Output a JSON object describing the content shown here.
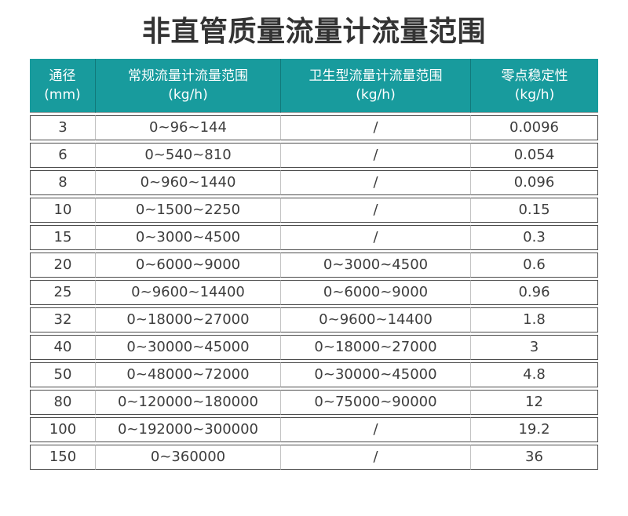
{
  "title": "非直管质量流量计流量范围",
  "theme": {
    "header_background": "#189B9D",
    "header_text_color": "#FFFFFF",
    "row_border_color": "#4C4C4C",
    "cell_divider_color": "#C2C2C2",
    "body_text_color": "#3D3D3D",
    "title_color": "#333333",
    "page_background": "#FFFFFF"
  },
  "table": {
    "columns": [
      {
        "label": "通径",
        "unit": "(mm)"
      },
      {
        "label": "常规流量计流量范围",
        "unit": "(kg/h)"
      },
      {
        "label": "卫生型流量计流量范围",
        "unit": "(kg/h)"
      },
      {
        "label": "零点稳定性",
        "unit": "(kg/h)"
      }
    ],
    "rows": [
      [
        "3",
        "0~96~144",
        "/",
        "0.0096"
      ],
      [
        "6",
        "0~540~810",
        "/",
        "0.054"
      ],
      [
        "8",
        "0~960~1440",
        "/",
        "0.096"
      ],
      [
        "10",
        "0~1500~2250",
        "/",
        "0.15"
      ],
      [
        "15",
        "0~3000~4500",
        "/",
        "0.3"
      ],
      [
        "20",
        "0~6000~9000",
        "0~3000~4500",
        "0.6"
      ],
      [
        "25",
        "0~9600~14400",
        "0~6000~9000",
        "0.96"
      ],
      [
        "32",
        "0~18000~27000",
        "0~9600~14400",
        "1.8"
      ],
      [
        "40",
        "0~30000~45000",
        "0~18000~27000",
        "3"
      ],
      [
        "50",
        "0~48000~72000",
        "0~30000~45000",
        "4.8"
      ],
      [
        "80",
        "0~120000~180000",
        "0~75000~90000",
        "12"
      ],
      [
        "100",
        "0~192000~300000",
        "/",
        "19.2"
      ],
      [
        "150",
        "0~360000",
        "/",
        "36"
      ]
    ]
  },
  "chart_data": {
    "type": "table",
    "title": "非直管质量流量计流量范围",
    "columns": [
      "通径(mm)",
      "常规流量计流量范围(kg/h)",
      "卫生型流量计流量范围(kg/h)",
      "零点稳定性(kg/h)"
    ],
    "rows": [
      [
        "3",
        "0~96~144",
        "/",
        "0.0096"
      ],
      [
        "6",
        "0~540~810",
        "/",
        "0.054"
      ],
      [
        "8",
        "0~960~1440",
        "/",
        "0.096"
      ],
      [
        "10",
        "0~1500~2250",
        "/",
        "0.15"
      ],
      [
        "15",
        "0~3000~4500",
        "/",
        "0.3"
      ],
      [
        "20",
        "0~6000~9000",
        "0~3000~4500",
        "0.6"
      ],
      [
        "25",
        "0~9600~14400",
        "0~6000~9000",
        "0.96"
      ],
      [
        "32",
        "0~18000~27000",
        "0~9600~14400",
        "1.8"
      ],
      [
        "40",
        "0~30000~45000",
        "0~18000~27000",
        "3"
      ],
      [
        "50",
        "0~48000~72000",
        "0~30000~45000",
        "4.8"
      ],
      [
        "80",
        "0~120000~180000",
        "0~75000~90000",
        "12"
      ],
      [
        "100",
        "0~192000~300000",
        "/",
        "19.2"
      ],
      [
        "150",
        "0~360000",
        "/",
        "36"
      ]
    ]
  }
}
